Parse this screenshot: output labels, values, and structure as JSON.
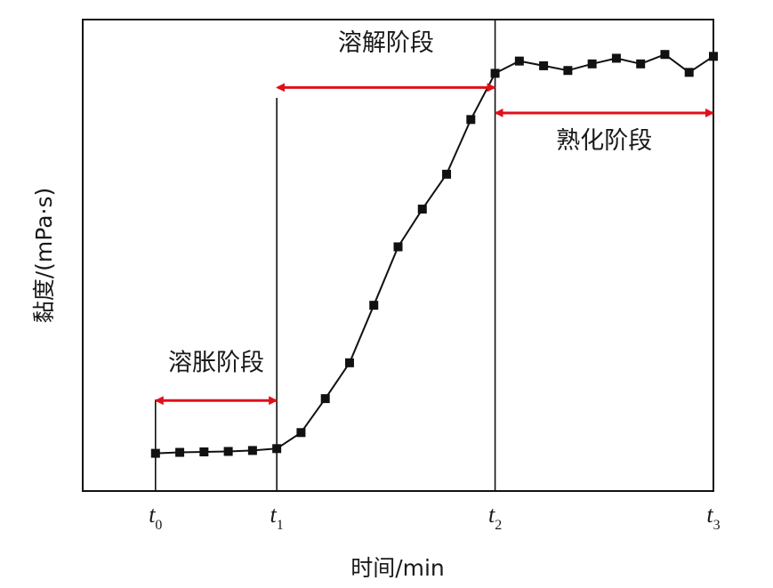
{
  "chart_data": {
    "type": "line",
    "xlabel": "时间/min",
    "ylabel": "黏度/(mPa·s)",
    "x_ticks": [
      {
        "name": "t",
        "sub": "0",
        "x": 0
      },
      {
        "name": "t",
        "sub": "1",
        "x": 5
      },
      {
        "name": "t",
        "sub": "2",
        "x": 14
      },
      {
        "name": "t",
        "sub": "3",
        "x": 23
      }
    ],
    "xlim": [
      -3,
      23
    ],
    "ylim": [
      0,
      100
    ],
    "marker": "square",
    "line_color": "#111111",
    "arrow_color": "#e0101a",
    "points": [
      {
        "x": 0,
        "y": 8
      },
      {
        "x": 1,
        "y": 8.2
      },
      {
        "x": 2,
        "y": 8.3
      },
      {
        "x": 3,
        "y": 8.4
      },
      {
        "x": 4,
        "y": 8.6
      },
      {
        "x": 5,
        "y": 9
      },
      {
        "x": 6,
        "y": 12.4
      },
      {
        "x": 7,
        "y": 19.6
      },
      {
        "x": 8,
        "y": 27.2
      },
      {
        "x": 9,
        "y": 39.4
      },
      {
        "x": 10,
        "y": 51.8
      },
      {
        "x": 11,
        "y": 59.8
      },
      {
        "x": 12,
        "y": 67.2
      },
      {
        "x": 13,
        "y": 78.8
      },
      {
        "x": 14,
        "y": 88.6
      },
      {
        "x": 15,
        "y": 91.2
      },
      {
        "x": 16,
        "y": 90.2
      },
      {
        "x": 17,
        "y": 89.2
      },
      {
        "x": 18,
        "y": 90.6
      },
      {
        "x": 19,
        "y": 91.8
      },
      {
        "x": 20,
        "y": 90.6
      },
      {
        "x": 21,
        "y": 92.6
      },
      {
        "x": 22,
        "y": 88.8
      },
      {
        "x": 23,
        "y": 92.2
      }
    ],
    "stage_lines": [
      {
        "x": 0,
        "y_top": 19.4
      },
      {
        "x": 5,
        "y_top": 83.4
      },
      {
        "x": 14,
        "y_top": 100
      }
    ],
    "stages": [
      {
        "label": "溶胀阶段",
        "x_start": 0,
        "x_end": 5,
        "y": 19.2,
        "label_y": 25.6
      },
      {
        "label": "溶解阶段",
        "x_start": 5,
        "x_end": 14,
        "y": 85.6,
        "label_y": 93.4
      },
      {
        "label": "熟化阶段",
        "x_start": 14,
        "x_end": 23,
        "y": 80.2,
        "label_y": 72.6
      }
    ]
  }
}
